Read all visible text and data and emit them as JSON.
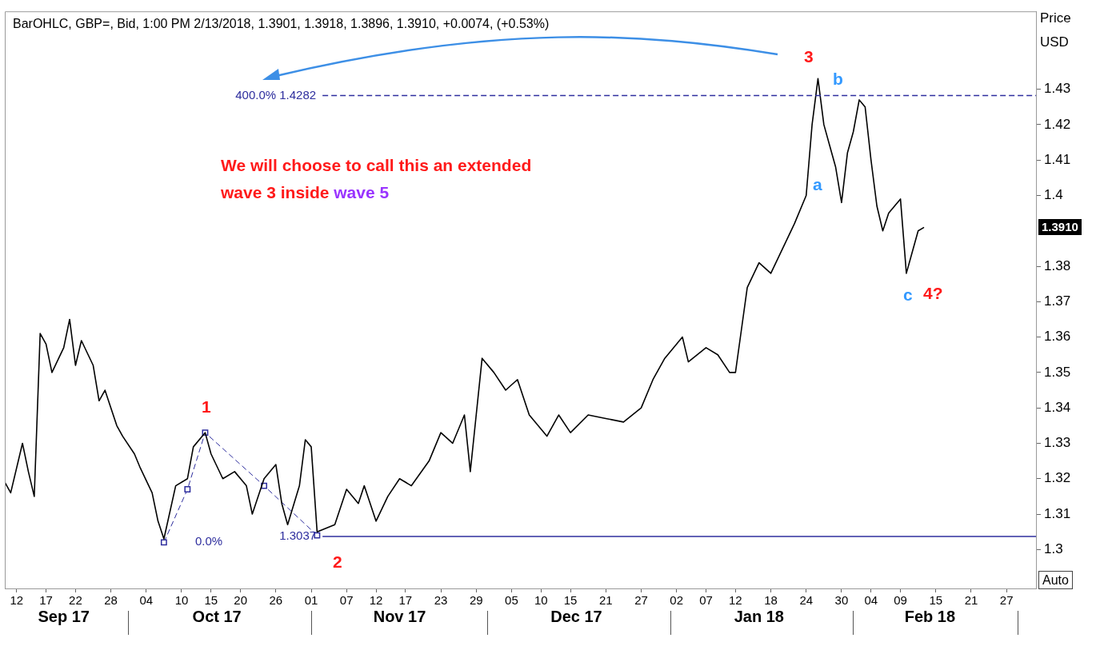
{
  "chart_data": {
    "type": "line",
    "title": "BarOHLC, GBP=, Bid, 1:00 PM 2/13/2018, 1.3901, 1.3918, 1.3896, 1.3910, +0.0074, (+0.53%)",
    "ylabel": "Price USD",
    "series": [
      {
        "color": "#000000",
        "marker": "none",
        "line_style": "solid",
        "x": [
          "2017-09-10",
          "2017-09-11",
          "2017-09-13",
          "2017-09-14",
          "2017-09-15",
          "2017-09-16",
          "2017-09-17",
          "2017-09-18",
          "2017-09-20",
          "2017-09-21",
          "2017-09-22",
          "2017-09-23",
          "2017-09-25",
          "2017-09-26",
          "2017-09-27",
          "2017-09-29",
          "2017-09-30",
          "2017-10-02",
          "2017-10-03",
          "2017-10-05",
          "2017-10-06",
          "2017-10-07",
          "2017-10-09",
          "2017-10-11",
          "2017-10-12",
          "2017-10-14",
          "2017-10-15",
          "2017-10-17",
          "2017-10-19",
          "2017-10-21",
          "2017-10-22",
          "2017-10-24",
          "2017-10-26",
          "2017-10-27",
          "2017-10-28",
          "2017-10-30",
          "2017-10-31",
          "2017-11-01",
          "2017-11-02",
          "2017-11-05",
          "2017-11-07",
          "2017-11-09",
          "2017-11-10",
          "2017-11-12",
          "2017-11-14",
          "2017-11-16",
          "2017-11-18",
          "2017-11-21",
          "2017-11-23",
          "2017-11-25",
          "2017-11-27",
          "2017-11-28",
          "2017-11-29",
          "2017-11-30",
          "2017-12-02",
          "2017-12-04",
          "2017-12-06",
          "2017-12-08",
          "2017-12-11",
          "2017-12-13",
          "2017-12-15",
          "2017-12-18",
          "2017-12-21",
          "2017-12-24",
          "2017-12-27",
          "2017-12-29",
          "2017-12-31",
          "2018-01-03",
          "2018-01-04",
          "2018-01-07",
          "2018-01-09",
          "2018-01-11",
          "2018-01-12",
          "2018-01-13",
          "2018-01-14",
          "2018-01-16",
          "2018-01-18",
          "2018-01-20",
          "2018-01-22",
          "2018-01-24",
          "2018-01-25",
          "2018-01-26",
          "2018-01-27",
          "2018-01-28",
          "2018-01-29",
          "2018-01-30",
          "2018-01-31",
          "2018-02-01",
          "2018-02-02",
          "2018-02-03",
          "2018-02-04",
          "2018-02-05",
          "2018-02-06",
          "2018-02-07",
          "2018-02-09",
          "2018-02-10",
          "2018-02-11",
          "2018-02-12",
          "2018-02-13"
        ],
        "values": [
          1.319,
          1.316,
          1.33,
          1.322,
          1.315,
          1.361,
          1.358,
          1.35,
          1.357,
          1.365,
          1.352,
          1.359,
          1.352,
          1.342,
          1.345,
          1.335,
          1.332,
          1.327,
          1.323,
          1.316,
          1.308,
          1.303,
          1.318,
          1.32,
          1.329,
          1.333,
          1.327,
          1.32,
          1.322,
          1.318,
          1.31,
          1.32,
          1.324,
          1.313,
          1.307,
          1.318,
          1.331,
          1.329,
          1.305,
          1.307,
          1.317,
          1.313,
          1.318,
          1.308,
          1.315,
          1.32,
          1.318,
          1.325,
          1.333,
          1.33,
          1.338,
          1.322,
          1.338,
          1.354,
          1.35,
          1.345,
          1.348,
          1.338,
          1.332,
          1.338,
          1.333,
          1.338,
          1.337,
          1.336,
          1.34,
          1.348,
          1.354,
          1.36,
          1.353,
          1.357,
          1.355,
          1.35,
          1.35,
          1.362,
          1.374,
          1.381,
          1.378,
          1.385,
          1.392,
          1.4,
          1.42,
          1.433,
          1.42,
          1.414,
          1.408,
          1.398,
          1.412,
          1.418,
          1.427,
          1.425,
          1.41,
          1.397,
          1.39,
          1.395,
          1.399,
          1.378,
          1.384,
          1.39,
          1.391
        ]
      },
      {
        "color": "#2e2e9e",
        "marker": "square",
        "line_style": "dashed",
        "x": [
          "2017-10-07",
          "2017-10-11",
          "2017-10-14",
          "2017-10-24",
          "2017-11-02"
        ],
        "values": [
          1.302,
          1.317,
          1.333,
          1.318,
          1.304
        ]
      }
    ],
    "xlim": [
      "2017-09-10",
      "2018-03-04"
    ],
    "xticks": [
      {
        "value": "2017-09-12",
        "label": "12"
      },
      {
        "value": "2017-09-17",
        "label": "17"
      },
      {
        "value": "2017-09-22",
        "label": "22"
      },
      {
        "value": "2017-09-28",
        "label": "28"
      },
      {
        "value": "2017-10-04",
        "label": "04"
      },
      {
        "value": "2017-10-10",
        "label": "10"
      },
      {
        "value": "2017-10-15",
        "label": "15"
      },
      {
        "value": "2017-10-20",
        "label": "20"
      },
      {
        "value": "2017-10-26",
        "label": "26"
      },
      {
        "value": "2017-11-01",
        "label": "01"
      },
      {
        "value": "2017-11-07",
        "label": "07"
      },
      {
        "value": "2017-11-12",
        "label": "12"
      },
      {
        "value": "2017-11-17",
        "label": "17"
      },
      {
        "value": "2017-11-23",
        "label": "23"
      },
      {
        "value": "2017-11-29",
        "label": "29"
      },
      {
        "value": "2017-12-05",
        "label": "05"
      },
      {
        "value": "2017-12-10",
        "label": "10"
      },
      {
        "value": "2017-12-15",
        "label": "15"
      },
      {
        "value": "2017-12-21",
        "label": "21"
      },
      {
        "value": "2017-12-27",
        "label": "27"
      },
      {
        "value": "2018-01-02",
        "label": "02"
      },
      {
        "value": "2018-01-07",
        "label": "07"
      },
      {
        "value": "2018-01-12",
        "label": "12"
      },
      {
        "value": "2018-01-18",
        "label": "18"
      },
      {
        "value": "2018-01-24",
        "label": "24"
      },
      {
        "value": "2018-01-30",
        "label": "30"
      },
      {
        "value": "2018-02-04",
        "label": "04"
      },
      {
        "value": "2018-02-09",
        "label": "09"
      },
      {
        "value": "2018-02-15",
        "label": "15"
      },
      {
        "value": "2018-02-21",
        "label": "21"
      },
      {
        "value": "2018-02-27",
        "label": "27"
      }
    ],
    "x2lim": [
      "2017-09-10",
      "2018-03-04"
    ],
    "x2ticks": [
      {
        "value": "2017-09-20",
        "label": "Sep 17"
      },
      {
        "value": "2017-10-16",
        "label": "Oct 17"
      },
      {
        "value": "2017-11-16",
        "label": "Nov 17"
      },
      {
        "value": "2017-12-16",
        "label": "Dec 17"
      },
      {
        "value": "2018-01-16",
        "label": "Jan 18"
      },
      {
        "value": "2018-02-14",
        "label": "Feb 18"
      }
    ],
    "ylim": [
      1.289,
      1.452
    ],
    "yticks": [
      1.3,
      1.31,
      1.32,
      1.33,
      1.34,
      1.35,
      1.36,
      1.37,
      1.38,
      1.4,
      1.41,
      1.42,
      1.43
    ],
    "ref_lines": [
      {
        "axis": "y",
        "value": 1.4282,
        "label": "400.0% 1.4282",
        "color": "#2e2e9e",
        "line_style": "dashed"
      },
      {
        "axis": "y",
        "value": 1.3037,
        "label": "1.3037",
        "color": "#2e2e9e",
        "line_style": "solid"
      }
    ],
    "annotations": [
      "1",
      "2",
      "3",
      "a",
      "b",
      "c",
      "4?",
      "0.0%",
      "1.3910",
      "We will choose to call this an extended wave 3 inside",
      "wave 5",
      "Auto"
    ]
  }
}
